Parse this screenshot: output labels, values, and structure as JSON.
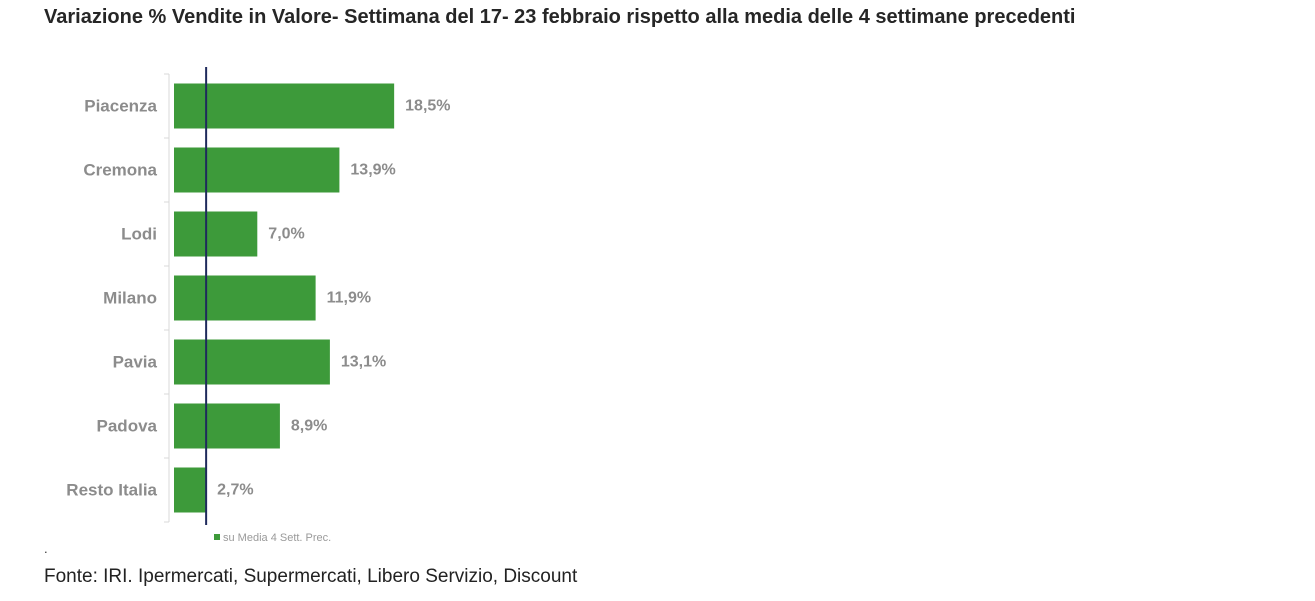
{
  "title": "Variazione % Vendite in Valore- Settimana del 17- 23 febbraio rispetto alla media delle 4 settimane precedenti",
  "footnote_mark": ".",
  "source": "Fonte: IRI. Ipermercati, Supermercati, Libero Servizio, Discount",
  "colors": {
    "bar": "#3d9a3a",
    "reference_line": "#1f2a5c",
    "label": "#8c8c8c"
  },
  "chart_data": {
    "type": "bar",
    "orientation": "horizontal",
    "title": "Variazione % Vendite in Valore- Settimana del 17- 23 febbraio rispetto alla media delle 4 settimane precedenti",
    "categories": [
      "Piacenza",
      "Cremona",
      "Lodi",
      "Milano",
      "Pavia",
      "Padova",
      "Resto Italia"
    ],
    "series": [
      {
        "name": "su Media 4 Sett. Prec.",
        "values": [
          18.5,
          13.9,
          7.0,
          11.9,
          13.1,
          8.9,
          2.7
        ],
        "labels": [
          "18,5%",
          "13,9%",
          "7,0%",
          "11,9%",
          "13,1%",
          "8,9%",
          "2,7%"
        ]
      }
    ],
    "reference_value": 2.7,
    "xlim": [
      0,
      18.5
    ],
    "legend_position": "bottom",
    "grid": false
  }
}
